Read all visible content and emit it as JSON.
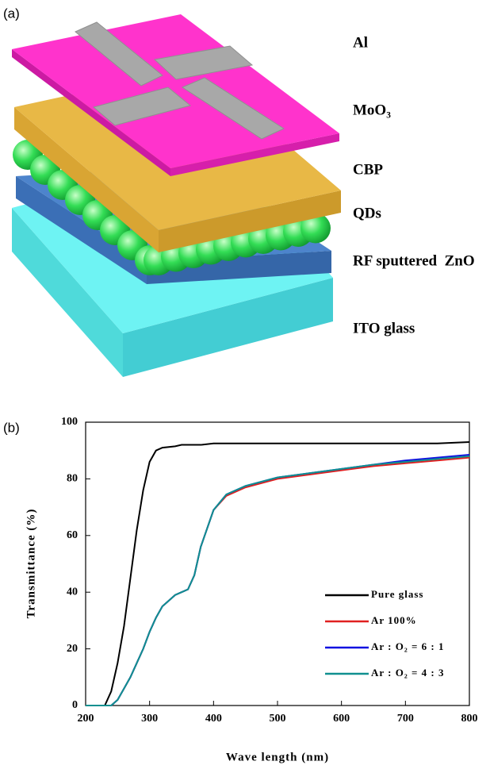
{
  "panel_a": {
    "label": "(a)",
    "layers": [
      "Al",
      "MoO₃",
      "CBP",
      "QDs",
      "RF sputtered  ZnO",
      "ITO glass"
    ]
  },
  "chart_data": {
    "type": "line",
    "panel_label": "(b)",
    "x_label": "Wave length (nm)",
    "y_label": "Transmittance (%)",
    "x": [
      200,
      230,
      240,
      250,
      260,
      270,
      280,
      290,
      300,
      310,
      320,
      340,
      350,
      360,
      370,
      380,
      400,
      420,
      450,
      500,
      550,
      600,
      650,
      700,
      750,
      800
    ],
    "series": [
      {
        "name": "Pure glass",
        "color": "#000000",
        "values": [
          0,
          0,
          5,
          15,
          28,
          45,
          62,
          76,
          86,
          90,
          91,
          91.5,
          92,
          92,
          92,
          92,
          92.5,
          92.5,
          92.5,
          92.5,
          92.5,
          92.5,
          92.5,
          92.5,
          92.5,
          93
        ]
      },
      {
        "name": "Ar 100%",
        "color": "#e02020",
        "values": [
          0,
          0,
          0,
          2,
          6,
          10,
          15,
          20,
          26,
          31,
          35,
          39,
          40,
          41,
          46,
          56,
          69,
          74,
          77,
          80,
          81.5,
          83,
          84.5,
          85.5,
          86.5,
          87.5
        ]
      },
      {
        "name": "Ar : O₂ = 6 : 1",
        "color": "#1010e0",
        "values": [
          0,
          0,
          0,
          2,
          6,
          10,
          15,
          20,
          26,
          31,
          35,
          39,
          40,
          41,
          46,
          56,
          69,
          74.5,
          77.5,
          80.5,
          82,
          83.5,
          85,
          86.5,
          87.5,
          88.5
        ]
      },
      {
        "name": "Ar : O₂ = 4 : 3",
        "color": "#109090",
        "values": [
          0,
          0,
          0,
          2,
          6,
          10,
          15,
          20,
          26,
          31,
          35,
          39,
          40,
          41,
          46,
          56,
          69,
          74.5,
          77.5,
          80.5,
          82,
          83.5,
          85,
          86,
          87,
          88
        ]
      }
    ],
    "xlim": [
      200,
      800
    ],
    "xticks": [
      200,
      300,
      400,
      500,
      600,
      700,
      800
    ],
    "ylim": [
      0,
      100
    ],
    "yticks": [
      0,
      20,
      40,
      60,
      80,
      100
    ]
  }
}
